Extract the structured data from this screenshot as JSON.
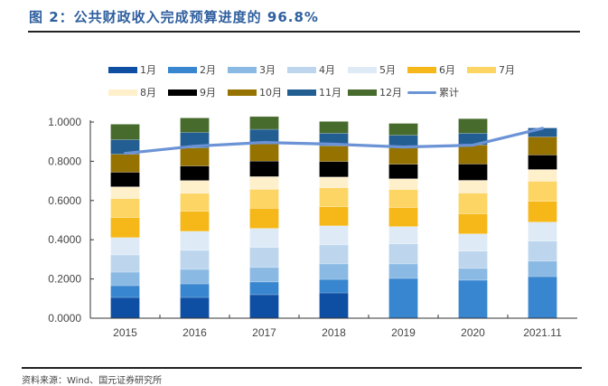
{
  "title": "图 2：公共财政收入完成预算进度的 96.8%",
  "source": "资料来源：Wind、国元证券研究所",
  "chart_data": {
    "type": "bar",
    "stacked": true,
    "title": "图 2：公共财政收入完成预算进度的 96.8%",
    "xlabel": "",
    "ylabel": "",
    "ylim": [
      0,
      1.0
    ],
    "yticks": [
      "0.0000",
      "0.2000",
      "0.4000",
      "0.6000",
      "0.8000",
      "1.0000"
    ],
    "ytick_values": [
      0,
      0.2,
      0.4,
      0.6,
      0.8,
      1.0
    ],
    "grid": false,
    "legend_position": "top",
    "categories": [
      "2015",
      "2016",
      "2017",
      "2018",
      "2019",
      "2020",
      "2021.11"
    ],
    "series": [
      {
        "name": "1月",
        "color": "#0f4fa3",
        "values": [
          0.106,
          0.106,
          0.12,
          0.129,
          0.0,
          0.0,
          0.0
        ]
      },
      {
        "name": "2月",
        "color": "#3886d0",
        "values": [
          0.06,
          0.069,
          0.065,
          0.069,
          0.203,
          0.194,
          0.212
        ]
      },
      {
        "name": "3月",
        "color": "#8ab9e3",
        "values": [
          0.069,
          0.074,
          0.074,
          0.079,
          0.074,
          0.06,
          0.079
        ]
      },
      {
        "name": "4月",
        "color": "#bdd6ee",
        "values": [
          0.088,
          0.097,
          0.102,
          0.097,
          0.102,
          0.088,
          0.102
        ]
      },
      {
        "name": "5月",
        "color": "#deebf7",
        "values": [
          0.088,
          0.097,
          0.097,
          0.097,
          0.088,
          0.088,
          0.097
        ]
      },
      {
        "name": "6月",
        "color": "#f5b818",
        "values": [
          0.102,
          0.102,
          0.102,
          0.097,
          0.097,
          0.102,
          0.106
        ]
      },
      {
        "name": "7月",
        "color": "#fdd565",
        "values": [
          0.097,
          0.092,
          0.097,
          0.097,
          0.092,
          0.106,
          0.102
        ]
      },
      {
        "name": "8月",
        "color": "#fff0cc",
        "values": [
          0.06,
          0.065,
          0.065,
          0.055,
          0.055,
          0.065,
          0.06
        ]
      },
      {
        "name": "9月",
        "color": "#000000",
        "values": [
          0.074,
          0.074,
          0.079,
          0.079,
          0.074,
          0.083,
          0.074
        ]
      },
      {
        "name": "10月",
        "color": "#967200",
        "values": [
          0.092,
          0.092,
          0.088,
          0.079,
          0.088,
          0.097,
          0.092
        ]
      },
      {
        "name": "11月",
        "color": "#235e93",
        "values": [
          0.074,
          0.079,
          0.074,
          0.065,
          0.06,
          0.06,
          0.046
        ]
      },
      {
        "name": "12月",
        "color": "#466b2d",
        "values": [
          0.079,
          0.074,
          0.065,
          0.06,
          0.06,
          0.074,
          0.0
        ]
      }
    ],
    "line": {
      "name": "累计",
      "color": "#6b93d6",
      "values": [
        0.84,
        0.877,
        0.896,
        0.887,
        0.873,
        0.882,
        0.968
      ]
    }
  }
}
